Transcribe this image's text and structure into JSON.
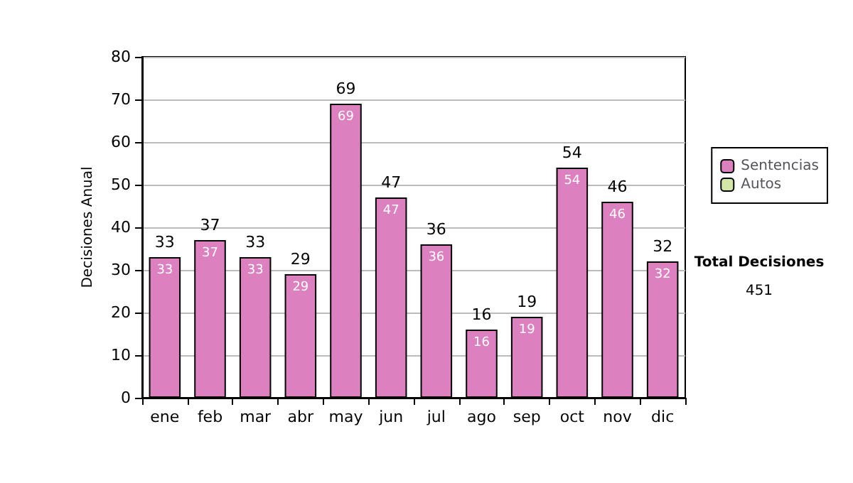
{
  "chart_data": {
    "type": "bar",
    "stacked": true,
    "ylabel": "Decisiones Anual",
    "categories": [
      "ene",
      "feb",
      "mar",
      "abr",
      "may",
      "jun",
      "jul",
      "ago",
      "sep",
      "oct",
      "nov",
      "dic"
    ],
    "series": [
      {
        "name": "Sentencias",
        "color": "#dd80c0",
        "values": [
          33,
          37,
          33,
          29,
          69,
          47,
          36,
          16,
          19,
          54,
          46,
          32
        ],
        "value_labels": [
          "33",
          "37",
          "33",
          "29",
          "69",
          "47",
          "36",
          "16",
          "19",
          "54",
          "46",
          "32"
        ]
      },
      {
        "name": "Autos",
        "color": "#d4e6a5",
        "values": [
          0,
          0,
          0,
          0,
          0,
          0,
          0,
          0,
          0,
          0,
          0,
          0
        ]
      }
    ],
    "totals": [
      "33",
      "37",
      "33",
      "29",
      "69",
      "47",
      "36",
      "16",
      "19",
      "54",
      "46",
      "32"
    ],
    "ylim": [
      0,
      80
    ],
    "yticks": [
      0,
      10,
      20,
      30,
      40,
      50,
      60,
      70,
      80
    ],
    "grid": "y",
    "legend": "right",
    "annotations": [
      "Total Decisiones",
      "451"
    ]
  }
}
